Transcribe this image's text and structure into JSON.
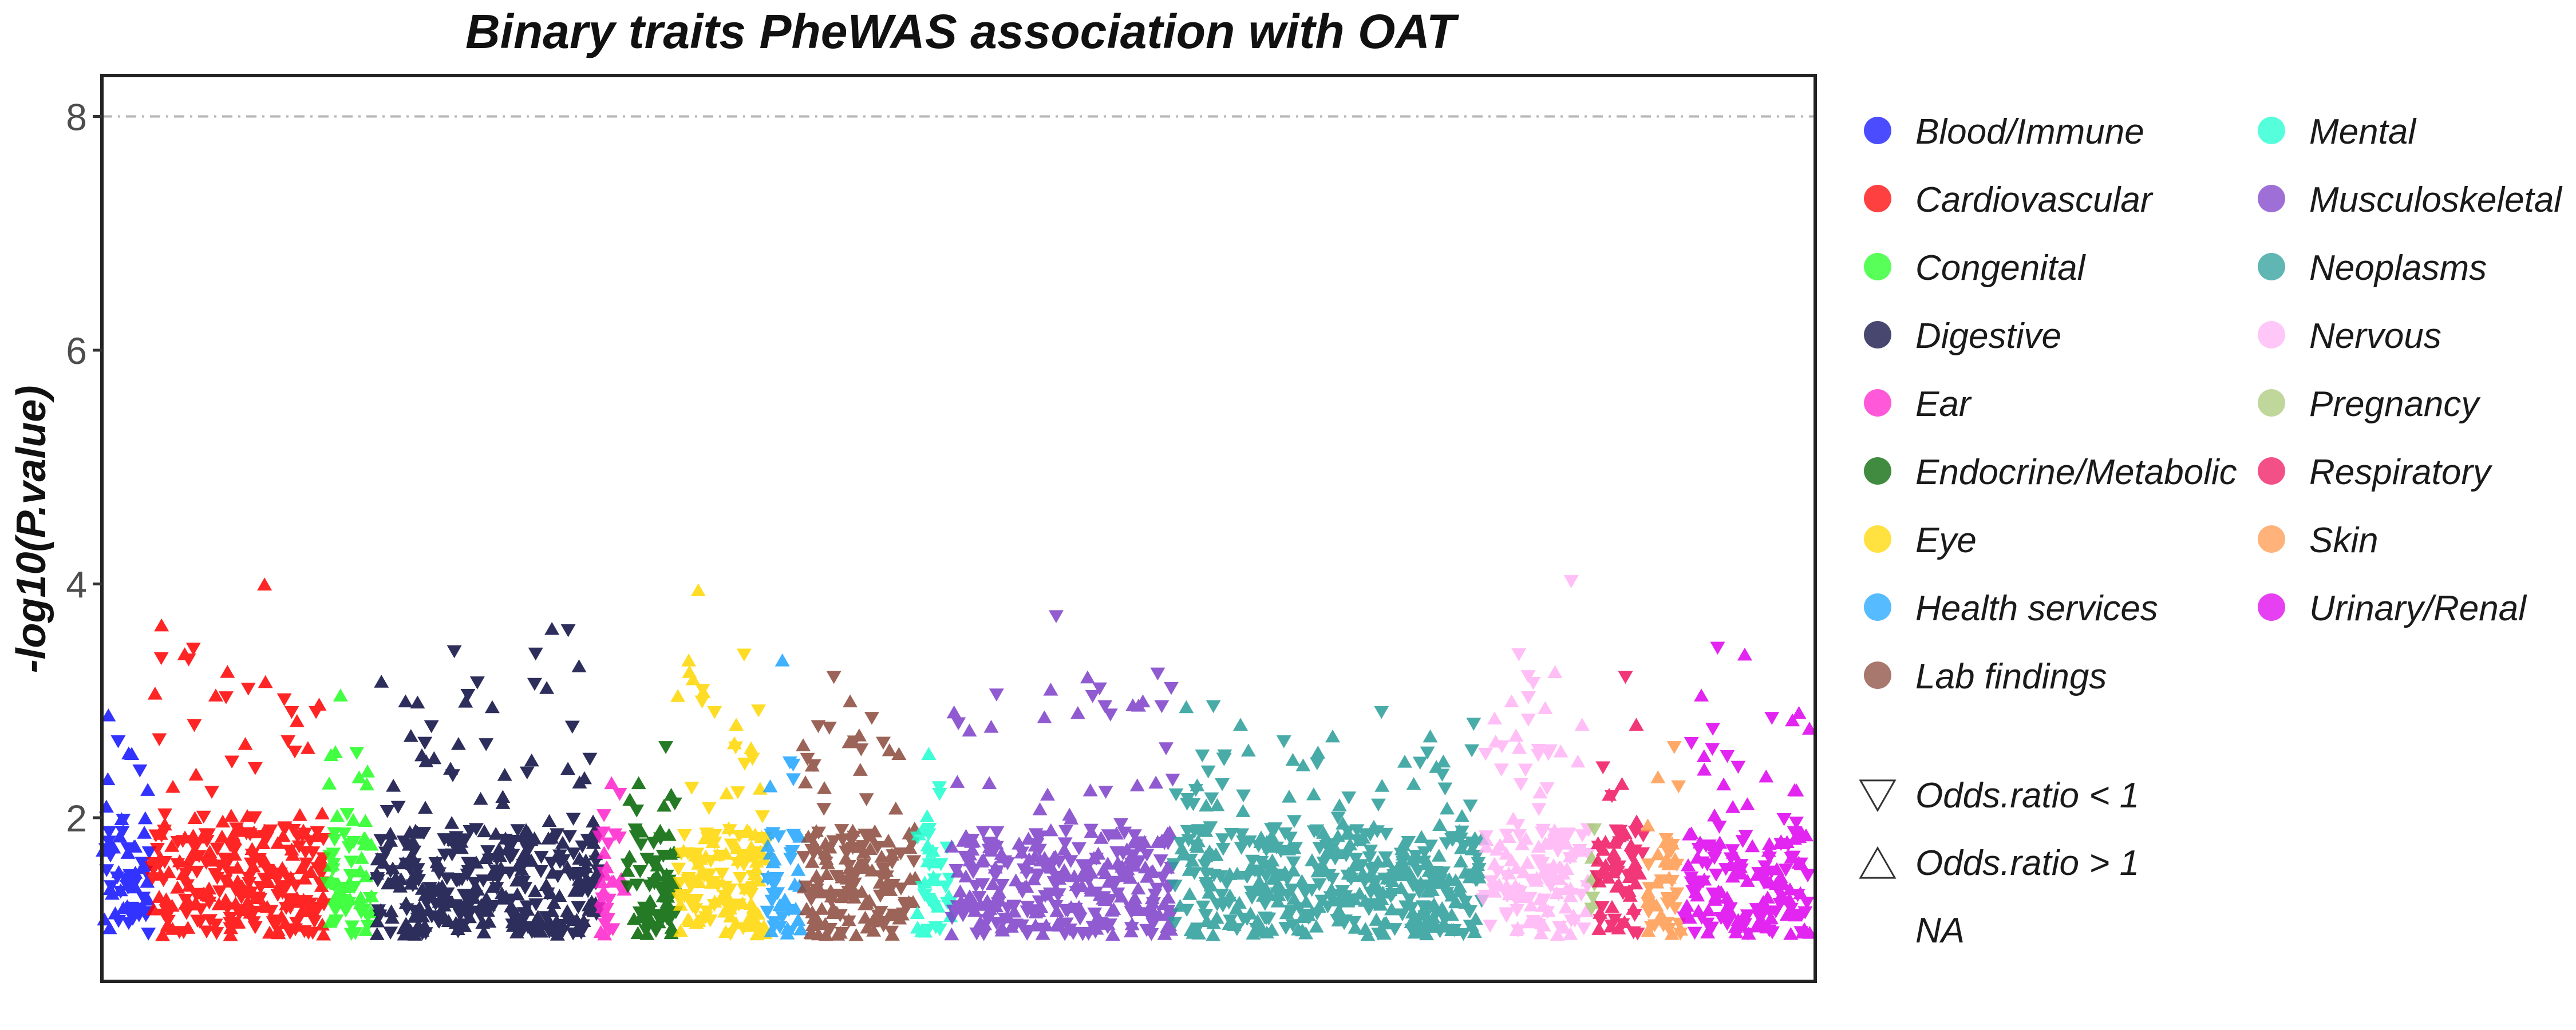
{
  "chart_data": {
    "type": "scatter",
    "title": "Binary traits PheWAS association with OAT",
    "xlabel": "",
    "ylabel": "-log10(P.value)",
    "ylim": [
      0.6,
      8.35
    ],
    "yticks": [
      2,
      4,
      6,
      8
    ],
    "reference_line": 8,
    "grid": false,
    "legend_position": "right",
    "categories": [
      {
        "name": "Blood/Immune",
        "color": "#1010ff",
        "x_range": [
          0,
          90
        ],
        "max_y": 2.9,
        "density": 60,
        "top_points": [
          [
            12,
            2.88
          ],
          [
            30,
            2.65
          ],
          [
            55,
            2.55
          ],
          [
            70,
            2.4
          ],
          [
            80,
            2.0
          ]
        ]
      },
      {
        "name": "Cardiovascular",
        "color": "#ff0000",
        "x_range": [
          92,
          410
        ],
        "max_y": 4.02,
        "density": 260,
        "top_points": [
          [
            110,
            3.65
          ],
          [
            160,
            3.35
          ],
          [
            210,
            3.05
          ],
          [
            270,
            3.1
          ],
          [
            300,
            4.0
          ],
          [
            350,
            2.9
          ],
          [
            380,
            2.6
          ],
          [
            395,
            2.9
          ]
        ]
      },
      {
        "name": "Congenital",
        "color": "#22ff22",
        "x_range": [
          412,
          500
        ],
        "max_y": 3.1,
        "density": 60,
        "top_points": [
          [
            440,
            3.05
          ],
          [
            470,
            2.55
          ],
          [
            490,
            2.4
          ]
        ]
      },
      {
        "name": "Digestive",
        "color": "#0a0a40",
        "x_range": [
          502,
          915
        ],
        "max_y": 3.65,
        "density": 330,
        "top_points": [
          [
            560,
            3.0
          ],
          [
            650,
            3.42
          ],
          [
            720,
            2.95
          ],
          [
            800,
            3.4
          ],
          [
            830,
            3.62
          ],
          [
            860,
            3.6
          ],
          [
            880,
            3.3
          ],
          [
            900,
            2.5
          ]
        ]
      },
      {
        "name": "Ear",
        "color": "#ff22cc",
        "x_range": [
          917,
          965
        ],
        "max_y": 2.3,
        "density": 30,
        "top_points": [
          [
            940,
            2.3
          ],
          [
            955,
            2.2
          ]
        ]
      },
      {
        "name": "Endocrine/Metabolic",
        "color": "#006400",
        "x_range": [
          967,
          1060
        ],
        "max_y": 2.6,
        "density": 70,
        "top_points": [
          [
            990,
            2.3
          ],
          [
            1040,
            2.6
          ],
          [
            1050,
            2.2
          ]
        ]
      },
      {
        "name": "Eye",
        "color": "#ffd700",
        "x_range": [
          1062,
          1225
        ],
        "max_y": 3.95,
        "density": 140,
        "top_points": [
          [
            1100,
            3.95
          ],
          [
            1130,
            2.9
          ],
          [
            1170,
            2.8
          ],
          [
            1200,
            2.5
          ]
        ]
      },
      {
        "name": "Health services",
        "color": "#1ea4ff",
        "x_range": [
          1227,
          1290
        ],
        "max_y": 3.35,
        "density": 40,
        "top_points": [
          [
            1255,
            3.35
          ],
          [
            1275,
            2.45
          ]
        ]
      },
      {
        "name": "Lab findings",
        "color": "#8b4a3c",
        "x_range": [
          1292,
          1500
        ],
        "max_y": 3.25,
        "density": 160,
        "top_points": [
          [
            1310,
            2.45
          ],
          [
            1350,
            3.2
          ],
          [
            1380,
            3.0
          ],
          [
            1420,
            2.85
          ],
          [
            1470,
            2.55
          ]
        ]
      },
      {
        "name": "Mental",
        "color": "#1dffcf",
        "x_range": [
          1502,
          1565
        ],
        "max_y": 2.6,
        "density": 40,
        "top_points": [
          [
            1525,
            2.55
          ],
          [
            1545,
            2.2
          ]
        ]
      },
      {
        "name": "Musculoskeletal",
        "color": "#7d3fc8",
        "x_range": [
          1567,
          1975
        ],
        "max_y": 3.72,
        "density": 300,
        "top_points": [
          [
            1600,
            2.75
          ],
          [
            1650,
            3.05
          ],
          [
            1750,
            3.1
          ],
          [
            1760,
            3.72
          ],
          [
            1800,
            2.9
          ],
          [
            1850,
            2.95
          ],
          [
            1920,
            3.0
          ]
        ]
      },
      {
        "name": "Neoplasms",
        "color": "#2a9d9a",
        "x_range": [
          1977,
          2545
        ],
        "max_y": 2.95,
        "density": 430,
        "top_points": [
          [
            2000,
            2.95
          ],
          [
            2050,
            2.95
          ],
          [
            2100,
            2.8
          ],
          [
            2180,
            2.65
          ],
          [
            2270,
            2.7
          ],
          [
            2360,
            2.9
          ],
          [
            2450,
            2.7
          ],
          [
            2530,
            2.8
          ]
        ]
      },
      {
        "name": "Nervous",
        "color": "#ffb3f5",
        "x_range": [
          2547,
          2745
        ],
        "max_y": 4.02,
        "density": 150,
        "top_points": [
          [
            2600,
            3.0
          ],
          [
            2640,
            3.15
          ],
          [
            2680,
            3.25
          ],
          [
            2710,
            4.02
          ],
          [
            2730,
            2.8
          ]
        ]
      },
      {
        "name": "Pregnancy",
        "color": "#a9c97a",
        "x_range": [
          2747,
          2755
        ],
        "max_y": 1.5,
        "density": 6,
        "top_points": [
          [
            2750,
            1.5
          ]
        ]
      },
      {
        "name": "Respiratory",
        "color": "#ef1560",
        "x_range": [
          2757,
          2845
        ],
        "max_y": 3.2,
        "density": 60,
        "top_points": [
          [
            2780,
            2.2
          ],
          [
            2810,
            3.2
          ],
          [
            2830,
            2.8
          ]
        ]
      },
      {
        "name": "Skin",
        "color": "#ff9a4d",
        "x_range": [
          2847,
          2915
        ],
        "max_y": 2.6,
        "density": 45,
        "top_points": [
          [
            2870,
            2.35
          ],
          [
            2900,
            2.6
          ]
        ]
      },
      {
        "name": "Urinary/Renal",
        "color": "#dd00ee",
        "x_range": [
          2917,
          3150
        ],
        "max_y": 3.45,
        "density": 160,
        "top_points": [
          [
            2950,
            3.05
          ],
          [
            2980,
            3.45
          ],
          [
            3030,
            3.4
          ],
          [
            3080,
            2.85
          ],
          [
            3130,
            2.9
          ]
        ]
      }
    ],
    "shape_legend": [
      {
        "label": "Odds.ratio < 1",
        "shape": "triangle-down"
      },
      {
        "label": "Odds.ratio > 1",
        "shape": "triangle-up"
      },
      {
        "label": "NA",
        "shape": "none"
      }
    ]
  }
}
